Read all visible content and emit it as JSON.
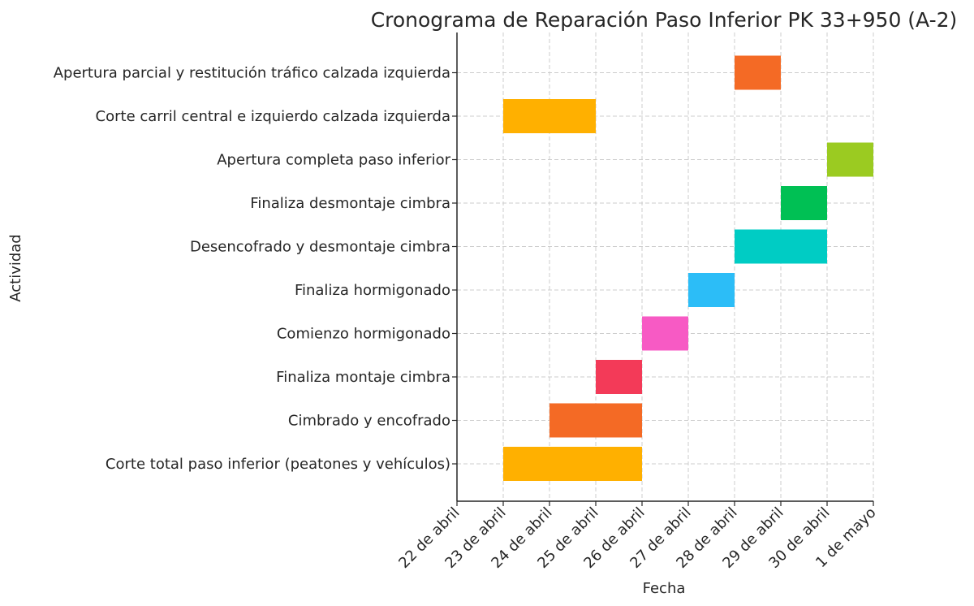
{
  "chart_data": {
    "type": "gantt",
    "title": "Cronograma de Reparación Paso Inferior PK 33+950 (A-2)",
    "xlabel": "Fecha",
    "ylabel": "Actividad",
    "x_ticks": [
      "22 de abril",
      "23 de abril",
      "24 de abril",
      "25 de abril",
      "26 de abril",
      "27 de abril",
      "28 de abril",
      "29 de abril",
      "30 de abril",
      "1 de mayo"
    ],
    "grid": true,
    "tasks": [
      {
        "name": "Corte total paso inferior (peatones y vehículos)",
        "start": "23 de abril",
        "end": "26 de abril",
        "color": "#FFB000"
      },
      {
        "name": "Cimbrado y encofrado",
        "start": "24 de abril",
        "end": "26 de abril",
        "color": "#F46A25"
      },
      {
        "name": "Finaliza montaje cimbra",
        "start": "25 de abril",
        "end": "26 de abril",
        "color": "#F33A58"
      },
      {
        "name": "Comienzo hormigonado",
        "start": "26 de abril",
        "end": "27 de abril",
        "color": "#F75AC4"
      },
      {
        "name": "Finaliza hormigonado",
        "start": "27 de abril",
        "end": "28 de abril",
        "color": "#2CBDF7"
      },
      {
        "name": "Desencofrado y desmontaje cimbra",
        "start": "28 de abril",
        "end": "30 de abril",
        "color": "#00CCC4"
      },
      {
        "name": "Finaliza desmontaje cimbra",
        "start": "29 de abril",
        "end": "30 de abril",
        "color": "#00C054"
      },
      {
        "name": "Apertura completa paso inferior",
        "start": "30 de abril",
        "end": "1 de mayo",
        "color": "#9BCB21"
      },
      {
        "name": "Corte carril central e izquierdo calzada izquierda",
        "start": "23 de abril",
        "end": "25 de abril",
        "color": "#FFB000"
      },
      {
        "name": "Apertura parcial y restitución tráfico calzada izquierda",
        "start": "28 de abril",
        "end": "29 de abril",
        "color": "#F46A25"
      }
    ]
  }
}
